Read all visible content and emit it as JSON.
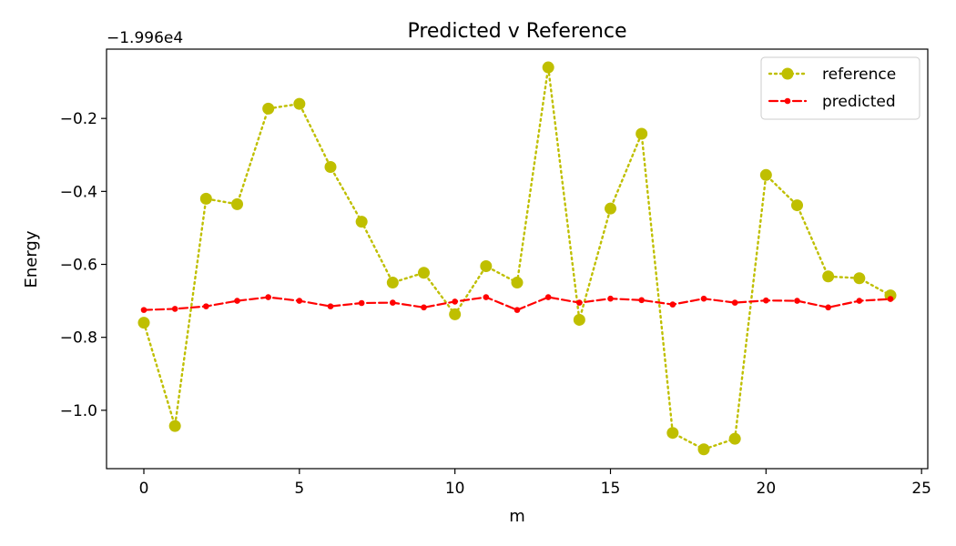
{
  "chart_data": {
    "type": "line",
    "title": "Predicted v Reference",
    "xlabel": "m",
    "ylabel": "Energy",
    "offset_label": "−1.996e4",
    "x": [
      0,
      1,
      2,
      3,
      4,
      5,
      6,
      7,
      8,
      9,
      10,
      11,
      12,
      13,
      14,
      15,
      16,
      17,
      18,
      19,
      20,
      21,
      22,
      23,
      24
    ],
    "series": [
      {
        "name": "reference",
        "color": "#bfbf00",
        "line_style": "dotted",
        "marker": "circle-large",
        "values": [
          -0.76,
          -1.043,
          -0.42,
          -0.435,
          -0.173,
          -0.16,
          -0.333,
          -0.483,
          -0.65,
          -0.623,
          -0.737,
          -0.605,
          -0.65,
          -0.06,
          -0.752,
          -0.447,
          -0.242,
          -1.062,
          -1.107,
          -1.078,
          -0.355,
          -0.438,
          -0.633,
          -0.638,
          -0.685
        ]
      },
      {
        "name": "predicted",
        "color": "#ff0000",
        "line_style": "dashed",
        "marker": "circle-small",
        "values": [
          -0.725,
          -0.722,
          -0.715,
          -0.7,
          -0.69,
          -0.7,
          -0.715,
          -0.706,
          -0.705,
          -0.718,
          -0.702,
          -0.69,
          -0.725,
          -0.69,
          -0.705,
          -0.694,
          -0.698,
          -0.71,
          -0.694,
          -0.705,
          -0.699,
          -0.7,
          -0.718,
          -0.7,
          -0.695
        ]
      }
    ],
    "xlim": [
      -1.2,
      25.2
    ],
    "ylim": [
      -1.16,
      -0.01
    ],
    "xticks": [
      0,
      5,
      10,
      15,
      20,
      25
    ],
    "xtick_labels": [
      "0",
      "5",
      "10",
      "15",
      "20",
      "25"
    ],
    "yticks": [
      -0.2,
      -0.4,
      -0.6,
      -0.8,
      -1.0
    ],
    "ytick_labels": [
      "−0.2",
      "−0.4",
      "−0.6",
      "−0.8",
      "−1.0"
    ],
    "grid": false,
    "legend_position": "top-right"
  }
}
